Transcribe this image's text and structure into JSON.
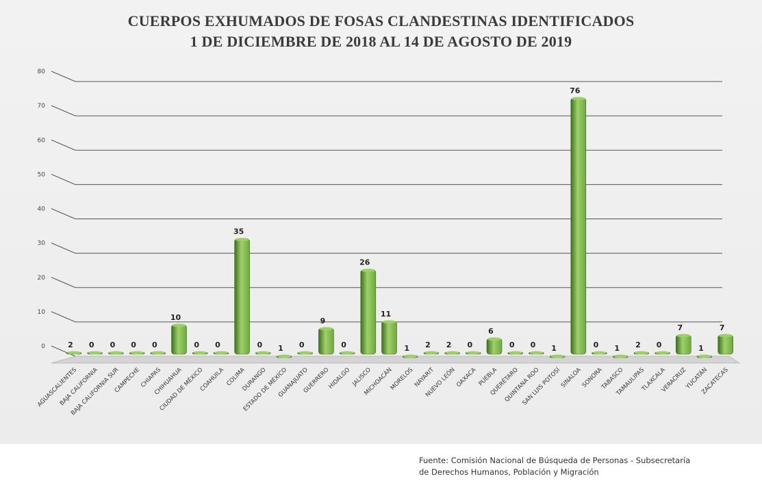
{
  "header": {
    "title_line_1": "CUERPOS EXHUMADOS DE FOSAS CLANDESTINAS IDENTIFICADOS",
    "title_line_2": "1 DE DICIEMBRE DE 2018 AL 14 DE AGOSTO DE 2019"
  },
  "source": {
    "line_1": "Fuente: Comisión Nacional de Búsqueda de Personas - Subsecretaría",
    "line_2": "de Derechos Humanos, Población y Migración"
  },
  "colors": {
    "bar_fill": "#6fa83e",
    "bar_highlight": "#9fd06b",
    "bar_dark": "#3f6f1f",
    "gridline": "#555555",
    "floor": "#d4d4d4"
  },
  "chart_data": {
    "type": "bar",
    "title": "CUERPOS EXHUMADOS DE FOSAS CLANDESTINAS IDENTIFICADOS 1 DE DICIEMBRE DE 2018 AL 14 DE AGOSTO DE 2019",
    "xlabel": "",
    "ylabel": "",
    "ylim": [
      0,
      80
    ],
    "yticks": [
      0,
      10,
      20,
      30,
      40,
      50,
      60,
      70,
      80
    ],
    "grid": true,
    "legend": "none",
    "categories": [
      "AGUASCALIENTES",
      "BAJA CALIFORNIA",
      "BAJA CALIFORNIA SUR",
      "CAMPECHE",
      "CHIAPAS",
      "CHIHUAHUA",
      "CIUDAD DE MÉXICO",
      "COAHUILA",
      "COLIMA",
      "DURANGO",
      "ESTADO DE MÉXICO",
      "GUANAJUATO",
      "GUERRERO",
      "HIDALGO",
      "JALISCO",
      "MICHOACÁN",
      "MORELOS",
      "NAYARIT",
      "NUEVO LEÓN",
      "OAXACA",
      "PUEBLA",
      "QUERÉTARO",
      "QUINTANA ROO",
      "SAN LUIS POTOSÍ",
      "SINALOA",
      "SONORA",
      "TABASCO",
      "TAMAULIPAS",
      "TLAXCALA",
      "VERACRUZ",
      "YUCATÁN",
      "ZACATECAS"
    ],
    "values": [
      2,
      0,
      0,
      0,
      0,
      10,
      0,
      0,
      35,
      0,
      1,
      0,
      9,
      0,
      26,
      11,
      1,
      2,
      2,
      0,
      6,
      0,
      0,
      1,
      76,
      0,
      1,
      2,
      0,
      7,
      1,
      7
    ]
  }
}
